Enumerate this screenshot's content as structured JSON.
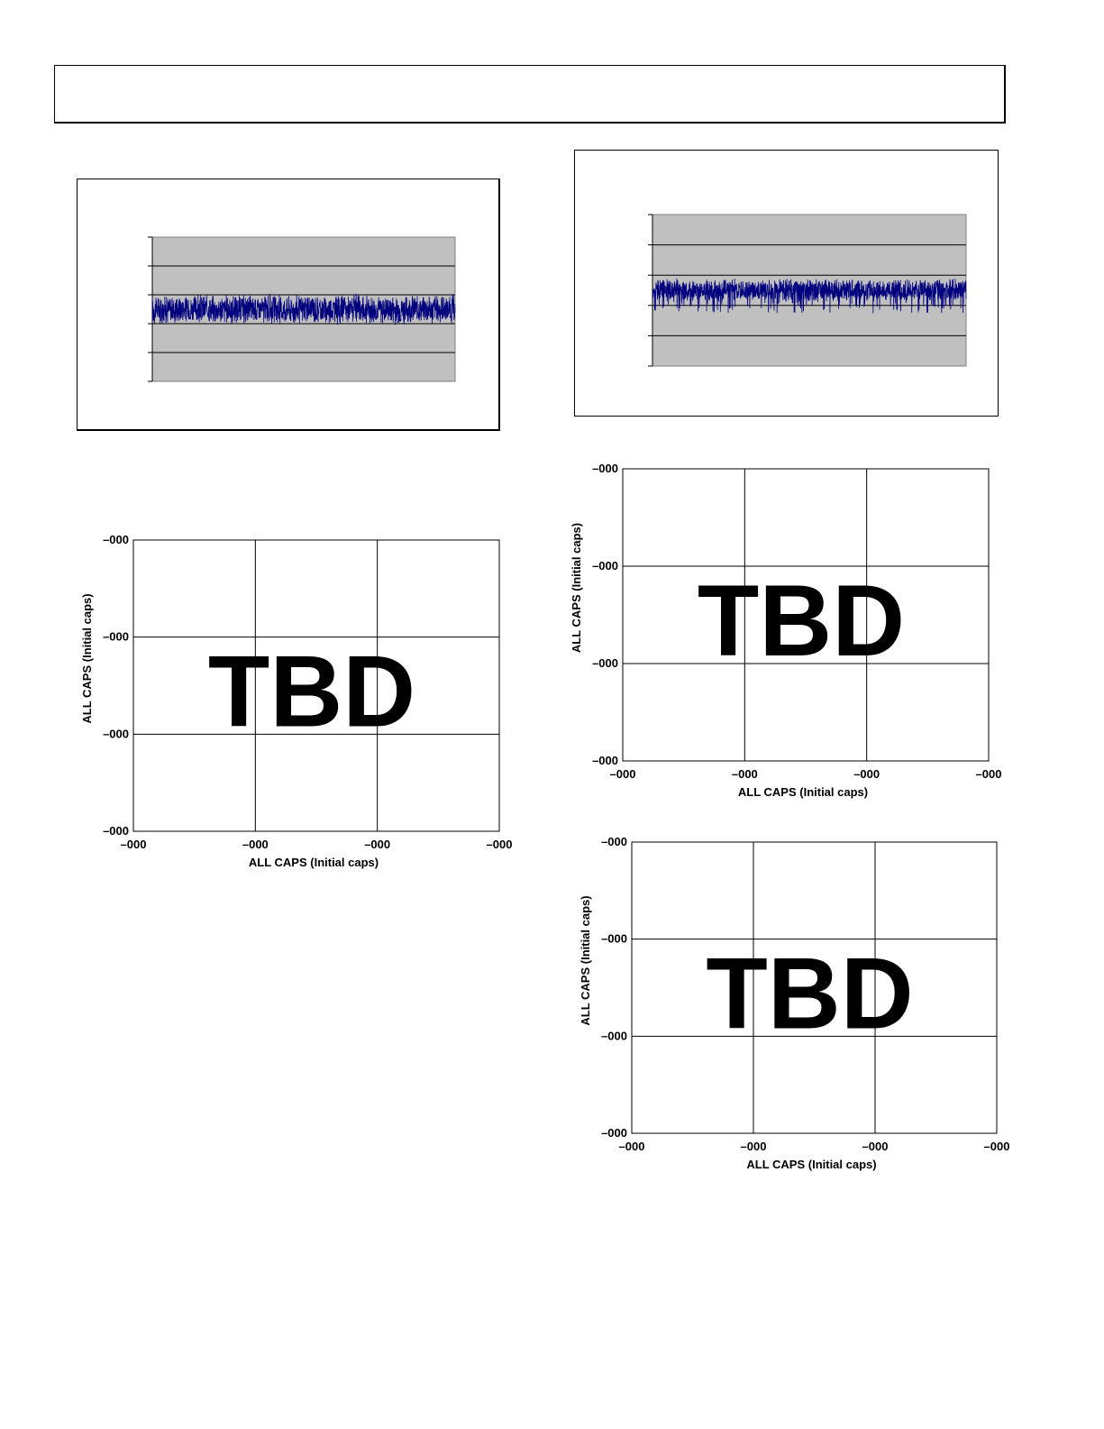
{
  "chart_data": [
    {
      "type": "line",
      "title": "",
      "xlabel": "",
      "ylabel": "",
      "ylim": [
        0,
        5
      ],
      "grid": true,
      "background": "#c0c0c0",
      "series_color": "#00007f",
      "series": [
        {
          "band_center": 2.5,
          "band_spread": 0.55,
          "samples": 1400
        }
      ]
    },
    {
      "type": "line",
      "title": "",
      "xlabel": "",
      "ylabel": "",
      "ylim": [
        0,
        5
      ],
      "grid": true,
      "background": "#c0c0c0",
      "series_color": "#00007f",
      "series": [
        {
          "band_center": 2.5,
          "band_spread": 0.4,
          "samples": 1600
        }
      ]
    },
    {
      "type": "table",
      "placeholder": "TBD",
      "xlabel": "ALL CAPS (Initial caps)",
      "ylabel": "ALL CAPS (Initial caps)",
      "x_ticks": [
        "–000",
        "–000",
        "–000",
        "–000"
      ],
      "y_ticks": [
        "–000",
        "–000",
        "–000",
        "–000"
      ],
      "grid": true
    },
    {
      "type": "table",
      "placeholder": "TBD",
      "xlabel": "ALL CAPS (Initial caps)",
      "ylabel": "ALL CAPS (Initial caps)",
      "x_ticks": [
        "–000",
        "–000",
        "–000",
        "–000"
      ],
      "y_ticks": [
        "–000",
        "–000",
        "–000",
        "–000"
      ],
      "grid": true
    },
    {
      "type": "table",
      "placeholder": "TBD",
      "xlabel": "ALL CAPS (Initial caps)",
      "ylabel": "ALL CAPS (Initial caps)",
      "x_ticks": [
        "–000",
        "–000",
        "–000",
        "–000"
      ],
      "y_ticks": [
        "–000",
        "–000",
        "–000",
        "–000"
      ],
      "grid": true
    }
  ]
}
